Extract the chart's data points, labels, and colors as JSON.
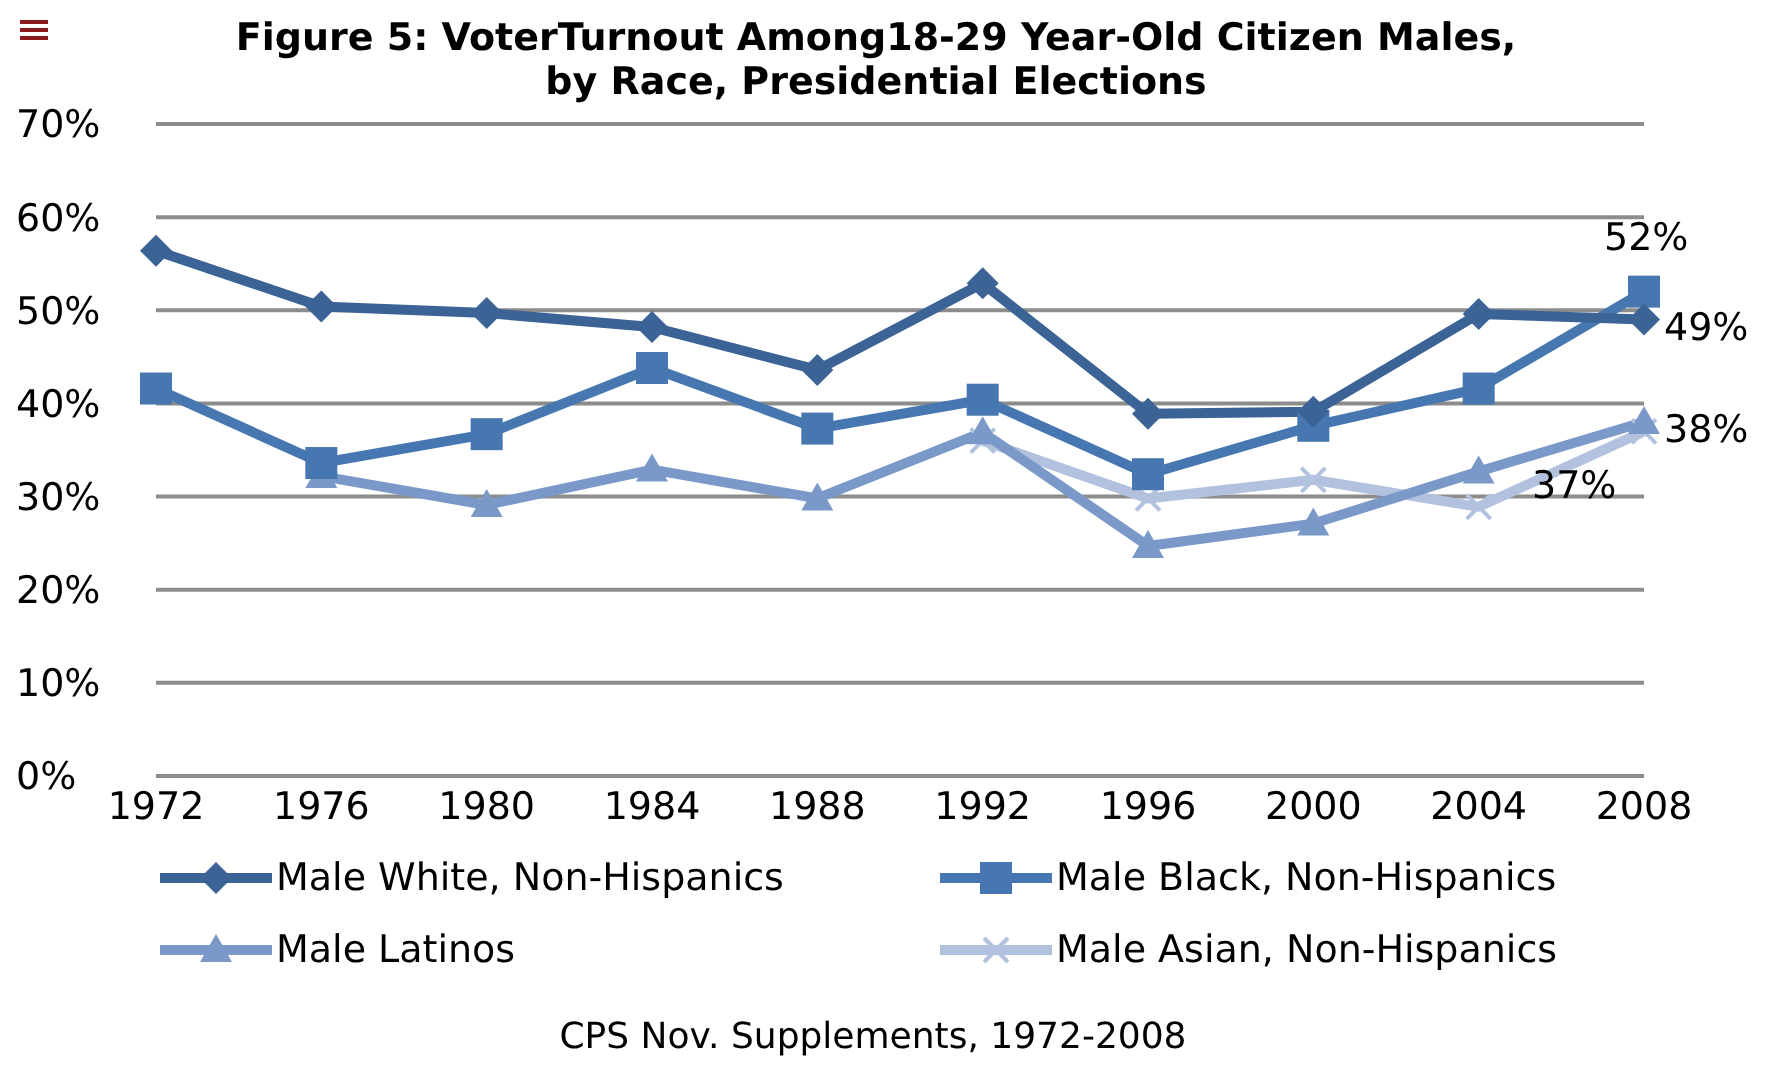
{
  "chart_data": {
    "type": "line",
    "title": "Figure 5: VoterTurnout Among18-29 Year-Old Citizen Males,\nby Race, Presidential Elections",
    "categories": [
      "1972",
      "1976",
      "1980",
      "1984",
      "1988",
      "1992",
      "1996",
      "2000",
      "2004",
      "2008"
    ],
    "series": [
      {
        "name": "Male White, Non-Hispanics",
        "color": "#3b6395",
        "marker": "diamond",
        "values": [
          56.4,
          50.4,
          49.7,
          48.2,
          43.6,
          52.9,
          38.9,
          39.1,
          49.6,
          49
        ],
        "value_labels": [
          null,
          null,
          null,
          null,
          null,
          null,
          null,
          null,
          null,
          "49%"
        ]
      },
      {
        "name": "Male Black, Non-Hispanics",
        "color": "#4677b0",
        "marker": "square",
        "values": [
          41.6,
          33.6,
          36.7,
          43.8,
          37.3,
          40.4,
          32.4,
          37.6,
          41.6,
          52
        ],
        "value_labels": [
          null,
          null,
          null,
          null,
          null,
          null,
          null,
          null,
          null,
          "52%"
        ]
      },
      {
        "name": "Male Latinos",
        "color": "#7b99c8",
        "marker": "triangle",
        "values": [
          null,
          32.2,
          29.1,
          32.9,
          29.8,
          36.9,
          24.7,
          27.1,
          32.7,
          38
        ],
        "value_labels": [
          null,
          null,
          null,
          null,
          null,
          null,
          null,
          null,
          null,
          "38%"
        ]
      },
      {
        "name": "Male Asian, Non-Hispanics",
        "color": "#b2c2de",
        "marker": "cross",
        "values": [
          null,
          null,
          null,
          null,
          null,
          36,
          29.8,
          31.8,
          28.9,
          37
        ],
        "value_labels": [
          null,
          null,
          null,
          null,
          null,
          null,
          null,
          null,
          null,
          "37%"
        ]
      }
    ],
    "ylim": [
      0,
      70
    ],
    "yticks": [
      {
        "value": 0,
        "label": "0%"
      },
      {
        "value": 10,
        "label": "10%"
      },
      {
        "value": 20,
        "label": "20%"
      },
      {
        "value": 30,
        "label": "30%"
      },
      {
        "value": 40,
        "label": "40%"
      },
      {
        "value": 50,
        "label": "50%"
      },
      {
        "value": 60,
        "label": "60%"
      },
      {
        "value": 70,
        "label": "70%"
      }
    ],
    "grid": "y",
    "legend": "bottom",
    "annotations": [
      "CPS Nov. Supplements, 1972-2008"
    ]
  }
}
